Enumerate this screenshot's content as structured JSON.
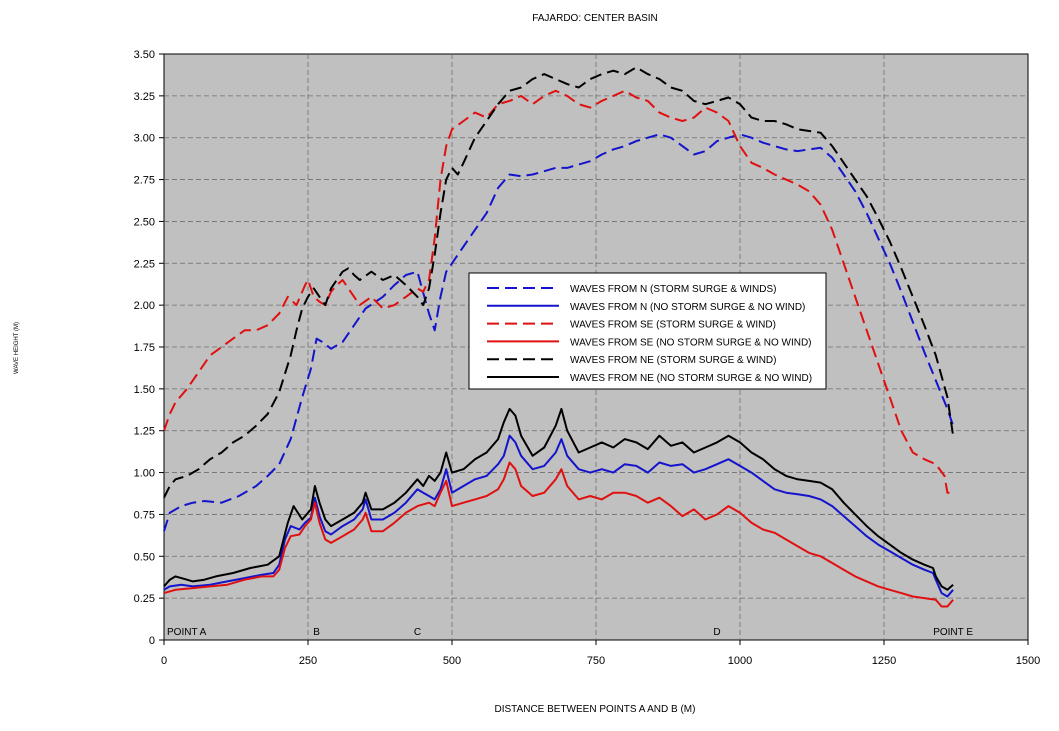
{
  "chart_data": {
    "type": "line",
    "title": "FAJARDO: CENTER BASIN",
    "xlabel": "DISTANCE BETWEEN POINTS A AND B (M)",
    "ylabel": "WAVE HEIGHT (M)",
    "xlim": [
      0,
      1500
    ],
    "ylim": [
      0,
      3.5
    ],
    "xticks": [
      "0",
      "250",
      "500",
      "750",
      "1000",
      "1250",
      "1500"
    ],
    "yticks": [
      "0",
      "0.25",
      "0.50",
      "0.75",
      "1.00",
      "1.25",
      "1.50",
      "1.75",
      "2.00",
      "2.25",
      "2.50",
      "2.75",
      "3.00",
      "3.25",
      "3.50"
    ],
    "grid": true,
    "legend_position": "center",
    "point_labels": [
      {
        "label": "POINT A",
        "x": 0
      },
      {
        "label": "B",
        "x": 265
      },
      {
        "label": "C",
        "x": 440
      },
      {
        "label": "D",
        "x": 960
      },
      {
        "label": "POINT E",
        "x": 1370
      }
    ],
    "series": [
      {
        "name": "WAVES FROM N (STORM SURGE & WINDS)",
        "color": "#1414cc",
        "dashed": true,
        "x": [
          0,
          10,
          30,
          50,
          70,
          100,
          130,
          160,
          180,
          200,
          220,
          240,
          255,
          265,
          275,
          290,
          310,
          330,
          350,
          380,
          400,
          420,
          440,
          460,
          470,
          480,
          490,
          500,
          520,
          540,
          560,
          580,
          600,
          620,
          640,
          660,
          680,
          700,
          720,
          740,
          760,
          780,
          800,
          820,
          840,
          860,
          880,
          900,
          920,
          940,
          960,
          980,
          1000,
          1020,
          1040,
          1060,
          1080,
          1100,
          1120,
          1140,
          1160,
          1180,
          1200,
          1220,
          1240,
          1260,
          1280,
          1300,
          1320,
          1340,
          1360,
          1370
        ],
        "y": [
          0.65,
          0.76,
          0.8,
          0.82,
          0.83,
          0.82,
          0.86,
          0.92,
          0.98,
          1.05,
          1.2,
          1.45,
          1.62,
          1.8,
          1.78,
          1.74,
          1.78,
          1.88,
          1.98,
          2.05,
          2.12,
          2.18,
          2.2,
          1.95,
          1.85,
          2.05,
          2.2,
          2.25,
          2.35,
          2.45,
          2.55,
          2.7,
          2.78,
          2.77,
          2.78,
          2.8,
          2.82,
          2.82,
          2.84,
          2.86,
          2.9,
          2.93,
          2.95,
          2.98,
          3.0,
          3.02,
          3.0,
          2.95,
          2.9,
          2.92,
          2.98,
          3.0,
          3.02,
          3.0,
          2.97,
          2.95,
          2.93,
          2.92,
          2.93,
          2.94,
          2.88,
          2.78,
          2.68,
          2.55,
          2.4,
          2.25,
          2.08,
          1.9,
          1.72,
          1.55,
          1.38,
          1.28
        ]
      },
      {
        "name": "WAVES FROM N (NO STORM SURGE & NO WIND)",
        "color": "#1414cc",
        "dashed": false,
        "x": [
          0,
          10,
          30,
          50,
          80,
          110,
          140,
          170,
          190,
          200,
          210,
          220,
          235,
          245,
          255,
          262,
          270,
          280,
          290,
          310,
          330,
          345,
          350,
          360,
          380,
          400,
          420,
          440,
          450,
          460,
          470,
          480,
          490,
          500,
          520,
          540,
          560,
          580,
          590,
          600,
          610,
          620,
          640,
          660,
          680,
          690,
          700,
          720,
          740,
          760,
          780,
          800,
          820,
          840,
          860,
          880,
          900,
          920,
          940,
          960,
          980,
          1000,
          1020,
          1040,
          1060,
          1080,
          1100,
          1120,
          1140,
          1160,
          1180,
          1200,
          1220,
          1240,
          1260,
          1280,
          1300,
          1320,
          1335,
          1340,
          1350,
          1360,
          1370
        ],
        "y": [
          0.3,
          0.32,
          0.33,
          0.32,
          0.33,
          0.35,
          0.37,
          0.39,
          0.4,
          0.45,
          0.6,
          0.68,
          0.66,
          0.7,
          0.73,
          0.85,
          0.74,
          0.65,
          0.63,
          0.68,
          0.72,
          0.78,
          0.84,
          0.72,
          0.72,
          0.76,
          0.82,
          0.9,
          0.88,
          0.86,
          0.84,
          0.9,
          1.02,
          0.88,
          0.92,
          0.96,
          0.98,
          1.05,
          1.1,
          1.22,
          1.18,
          1.1,
          1.02,
          1.04,
          1.12,
          1.2,
          1.1,
          1.02,
          1.0,
          1.02,
          1.0,
          1.05,
          1.04,
          1.0,
          1.06,
          1.04,
          1.05,
          1.0,
          1.02,
          1.05,
          1.08,
          1.04,
          1.0,
          0.95,
          0.9,
          0.88,
          0.87,
          0.86,
          0.84,
          0.8,
          0.74,
          0.68,
          0.62,
          0.57,
          0.53,
          0.49,
          0.45,
          0.42,
          0.4,
          0.36,
          0.28,
          0.26,
          0.3
        ]
      },
      {
        "name": "WAVES FROM SE (STORM SURGE & WIND)",
        "color": "#e01010",
        "dashed": true,
        "x": [
          0,
          10,
          20,
          40,
          60,
          80,
          100,
          120,
          140,
          160,
          180,
          200,
          215,
          230,
          245,
          250,
          260,
          270,
          280,
          290,
          300,
          310,
          320,
          330,
          340,
          360,
          380,
          400,
          420,
          440,
          450,
          460,
          470,
          480,
          490,
          500,
          520,
          540,
          560,
          580,
          600,
          620,
          640,
          660,
          680,
          700,
          720,
          740,
          760,
          780,
          800,
          820,
          840,
          860,
          880,
          900,
          920,
          940,
          960,
          980,
          1000,
          1020,
          1040,
          1060,
          1080,
          1100,
          1120,
          1140,
          1160,
          1180,
          1200,
          1220,
          1240,
          1260,
          1280,
          1300,
          1320,
          1340,
          1355,
          1360,
          1370
        ],
        "y": [
          1.25,
          1.35,
          1.42,
          1.5,
          1.6,
          1.7,
          1.75,
          1.8,
          1.85,
          1.85,
          1.88,
          1.95,
          2.05,
          2.0,
          2.12,
          2.15,
          2.05,
          2.02,
          2.0,
          2.08,
          2.12,
          2.15,
          2.1,
          2.05,
          2.0,
          2.05,
          1.98,
          2.0,
          2.05,
          2.1,
          2.08,
          2.15,
          2.4,
          2.75,
          2.95,
          3.05,
          3.1,
          3.15,
          3.12,
          3.2,
          3.22,
          3.25,
          3.2,
          3.25,
          3.28,
          3.25,
          3.2,
          3.18,
          3.22,
          3.25,
          3.28,
          3.24,
          3.22,
          3.15,
          3.12,
          3.1,
          3.12,
          3.18,
          3.15,
          3.1,
          2.95,
          2.85,
          2.82,
          2.78,
          2.75,
          2.72,
          2.68,
          2.6,
          2.45,
          2.25,
          2.05,
          1.85,
          1.65,
          1.45,
          1.25,
          1.12,
          1.08,
          1.05,
          0.98,
          0.88,
          0.88
        ]
      },
      {
        "name": "WAVES FROM SE (NO STORM SURGE & NO WIND)",
        "color": "#e01010",
        "dashed": false,
        "x": [
          0,
          20,
          50,
          80,
          110,
          140,
          170,
          190,
          200,
          210,
          220,
          235,
          245,
          255,
          262,
          270,
          280,
          290,
          310,
          330,
          345,
          350,
          360,
          380,
          400,
          420,
          440,
          460,
          470,
          480,
          490,
          500,
          520,
          540,
          560,
          580,
          590,
          600,
          610,
          620,
          640,
          660,
          680,
          690,
          700,
          720,
          740,
          760,
          780,
          800,
          820,
          840,
          860,
          880,
          900,
          920,
          940,
          960,
          980,
          1000,
          1020,
          1040,
          1060,
          1080,
          1100,
          1120,
          1140,
          1160,
          1180,
          1200,
          1220,
          1240,
          1260,
          1280,
          1300,
          1320,
          1340,
          1350,
          1360,
          1370
        ],
        "y": [
          0.28,
          0.3,
          0.31,
          0.32,
          0.33,
          0.36,
          0.38,
          0.38,
          0.42,
          0.55,
          0.62,
          0.63,
          0.68,
          0.72,
          0.82,
          0.7,
          0.6,
          0.58,
          0.62,
          0.66,
          0.72,
          0.76,
          0.65,
          0.65,
          0.7,
          0.76,
          0.8,
          0.82,
          0.8,
          0.88,
          0.95,
          0.8,
          0.82,
          0.84,
          0.86,
          0.9,
          0.96,
          1.06,
          1.02,
          0.92,
          0.86,
          0.88,
          0.96,
          1.02,
          0.92,
          0.84,
          0.86,
          0.84,
          0.88,
          0.88,
          0.86,
          0.82,
          0.85,
          0.8,
          0.74,
          0.78,
          0.72,
          0.75,
          0.8,
          0.76,
          0.7,
          0.66,
          0.64,
          0.6,
          0.56,
          0.52,
          0.5,
          0.46,
          0.42,
          0.38,
          0.35,
          0.32,
          0.3,
          0.28,
          0.26,
          0.25,
          0.24,
          0.2,
          0.2,
          0.24
        ]
      },
      {
        "name": "WAVES FROM NE (STORM SURGE & WIND)",
        "color": "#000000",
        "dashed": true,
        "x": [
          0,
          10,
          20,
          40,
          60,
          80,
          100,
          120,
          140,
          160,
          180,
          200,
          220,
          230,
          240,
          250,
          260,
          270,
          280,
          290,
          300,
          310,
          320,
          330,
          340,
          360,
          380,
          400,
          420,
          440,
          450,
          460,
          470,
          480,
          490,
          500,
          510,
          520,
          540,
          560,
          580,
          600,
          620,
          640,
          660,
          680,
          700,
          720,
          740,
          760,
          780,
          800,
          820,
          840,
          860,
          880,
          900,
          920,
          940,
          960,
          980,
          1000,
          1020,
          1040,
          1060,
          1080,
          1100,
          1120,
          1140,
          1160,
          1180,
          1200,
          1220,
          1240,
          1260,
          1280,
          1300,
          1320,
          1340,
          1360,
          1370
        ],
        "y": [
          0.85,
          0.92,
          0.96,
          0.98,
          1.02,
          1.08,
          1.12,
          1.18,
          1.22,
          1.28,
          1.35,
          1.48,
          1.7,
          1.85,
          1.98,
          2.05,
          2.1,
          2.05,
          2.0,
          2.1,
          2.15,
          2.2,
          2.22,
          2.18,
          2.15,
          2.2,
          2.15,
          2.18,
          2.12,
          2.05,
          2.0,
          2.1,
          2.3,
          2.55,
          2.75,
          2.82,
          2.78,
          2.85,
          3.0,
          3.1,
          3.2,
          3.28,
          3.3,
          3.35,
          3.38,
          3.35,
          3.32,
          3.3,
          3.35,
          3.38,
          3.4,
          3.38,
          3.42,
          3.38,
          3.35,
          3.3,
          3.28,
          3.22,
          3.2,
          3.22,
          3.24,
          3.2,
          3.12,
          3.1,
          3.1,
          3.08,
          3.05,
          3.04,
          3.03,
          2.95,
          2.85,
          2.75,
          2.65,
          2.52,
          2.38,
          2.22,
          2.05,
          1.88,
          1.7,
          1.45,
          1.22
        ]
      },
      {
        "name": "WAVES FROM NE (NO STORM SURGE & NO WIND)",
        "color": "#000000",
        "dashed": false,
        "x": [
          0,
          10,
          20,
          40,
          50,
          70,
          90,
          120,
          150,
          180,
          200,
          215,
          225,
          240,
          255,
          262,
          270,
          280,
          290,
          310,
          330,
          345,
          350,
          360,
          380,
          400,
          420,
          440,
          450,
          460,
          470,
          480,
          490,
          500,
          520,
          540,
          560,
          580,
          590,
          600,
          610,
          620,
          640,
          660,
          680,
          690,
          700,
          720,
          740,
          760,
          780,
          800,
          820,
          840,
          860,
          880,
          900,
          920,
          940,
          960,
          980,
          1000,
          1020,
          1040,
          1060,
          1080,
          1100,
          1120,
          1140,
          1160,
          1180,
          1200,
          1220,
          1240,
          1260,
          1280,
          1300,
          1320,
          1335,
          1340,
          1350,
          1360,
          1370
        ],
        "y": [
          0.32,
          0.36,
          0.38,
          0.36,
          0.35,
          0.36,
          0.38,
          0.4,
          0.43,
          0.45,
          0.5,
          0.7,
          0.8,
          0.72,
          0.78,
          0.92,
          0.82,
          0.72,
          0.68,
          0.72,
          0.76,
          0.82,
          0.88,
          0.78,
          0.78,
          0.82,
          0.88,
          0.96,
          0.92,
          0.98,
          0.95,
          1.0,
          1.12,
          1.0,
          1.02,
          1.08,
          1.12,
          1.2,
          1.3,
          1.38,
          1.34,
          1.22,
          1.1,
          1.15,
          1.28,
          1.38,
          1.25,
          1.12,
          1.15,
          1.18,
          1.15,
          1.2,
          1.18,
          1.14,
          1.22,
          1.16,
          1.18,
          1.12,
          1.15,
          1.18,
          1.22,
          1.18,
          1.12,
          1.08,
          1.02,
          0.98,
          0.96,
          0.95,
          0.94,
          0.9,
          0.82,
          0.75,
          0.68,
          0.62,
          0.57,
          0.52,
          0.48,
          0.45,
          0.43,
          0.38,
          0.32,
          0.3,
          0.33
        ]
      }
    ]
  }
}
